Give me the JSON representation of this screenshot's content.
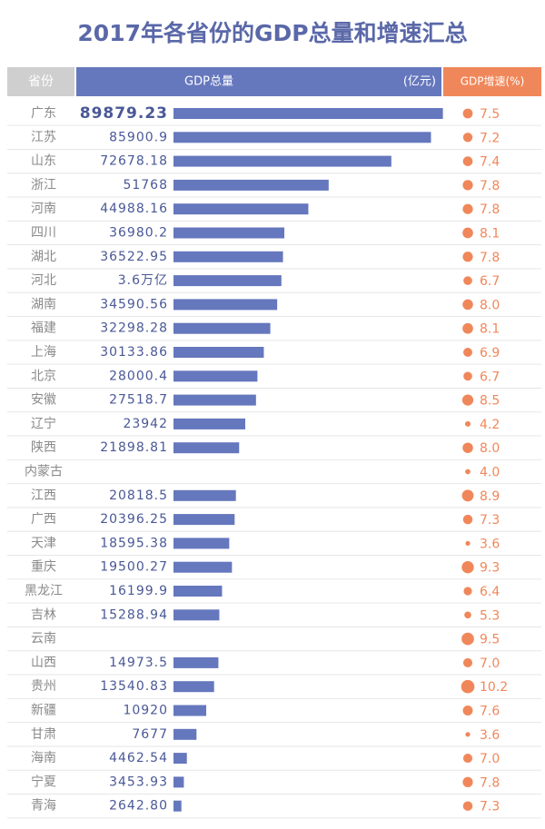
{
  "chart_data": {
    "type": "bar",
    "title": "2017年各省份的GDP总量和增速汇总",
    "header": {
      "category": "省份",
      "gdp": "GDP总量",
      "unit": "(亿元)",
      "growth": "GDP增速(%)"
    },
    "categories": [
      "广东",
      "江苏",
      "山东",
      "浙江",
      "河南",
      "四川",
      "湖北",
      "河北",
      "湖南",
      "福建",
      "上海",
      "北京",
      "安徽",
      "辽宁",
      "陕西",
      "内蒙古",
      "江西",
      "广西",
      "天津",
      "重庆",
      "黑龙江",
      "吉林",
      "云南",
      "山西",
      "贵州",
      "新疆",
      "甘肃",
      "海南",
      "宁夏",
      "青海"
    ],
    "xlim": [
      0,
      90000
    ],
    "series": [
      {
        "name": "GDP总量",
        "color": "#6577bd",
        "values": [
          89879.23,
          85900.9,
          72678.18,
          51768,
          44988.16,
          36980.2,
          36522.95,
          36000,
          34590.56,
          32298.28,
          30133.86,
          28000.4,
          27518.7,
          23942,
          21898.81,
          null,
          20818.5,
          20396.25,
          18595.38,
          19500.27,
          16199.9,
          15288.94,
          null,
          14973.5,
          13540.83,
          10920,
          7677,
          4462.54,
          3453.93,
          2642.8
        ],
        "value_labels": [
          "89879.23",
          "85900.9",
          "72678.18",
          "51768",
          "44988.16",
          "36980.2",
          "36522.95",
          "3.6万亿",
          "34590.56",
          "32298.28",
          "30133.86",
          "28000.4",
          "27518.7",
          "23942",
          "21898.81",
          null,
          "20818.5",
          "20396.25",
          "18595.38",
          "19500.27",
          "16199.9",
          "15288.94",
          null,
          "14973.5",
          "13540.83",
          "10920",
          "7677",
          "4462.54",
          "3453.93",
          "2642.80"
        ]
      },
      {
        "name": "GDP增速(%)",
        "color": "#f0875a",
        "values": [
          7.5,
          7.2,
          7.4,
          7.8,
          7.8,
          8.1,
          7.8,
          6.7,
          8.0,
          8.1,
          6.9,
          6.7,
          8.5,
          4.2,
          8.0,
          4.0,
          8.9,
          7.3,
          3.6,
          9.3,
          6.4,
          5.3,
          9.5,
          7.0,
          10.2,
          7.6,
          3.6,
          7.0,
          7.8,
          7.3
        ],
        "value_labels": [
          "7.5",
          "7.2",
          "7.4",
          "7.8",
          "7.8",
          "8.1",
          "7.8",
          "6.7",
          "8.0",
          "8.1",
          "6.9",
          "6.7",
          "8.5",
          "4.2",
          "8.0",
          "4.0",
          "8.9",
          "7.3",
          "3.6",
          "9.3",
          "6.4",
          "5.3",
          "9.5",
          "7.0",
          "10.2",
          "7.6",
          "3.6",
          "7.0",
          "7.8",
          "7.3"
        ]
      }
    ]
  }
}
